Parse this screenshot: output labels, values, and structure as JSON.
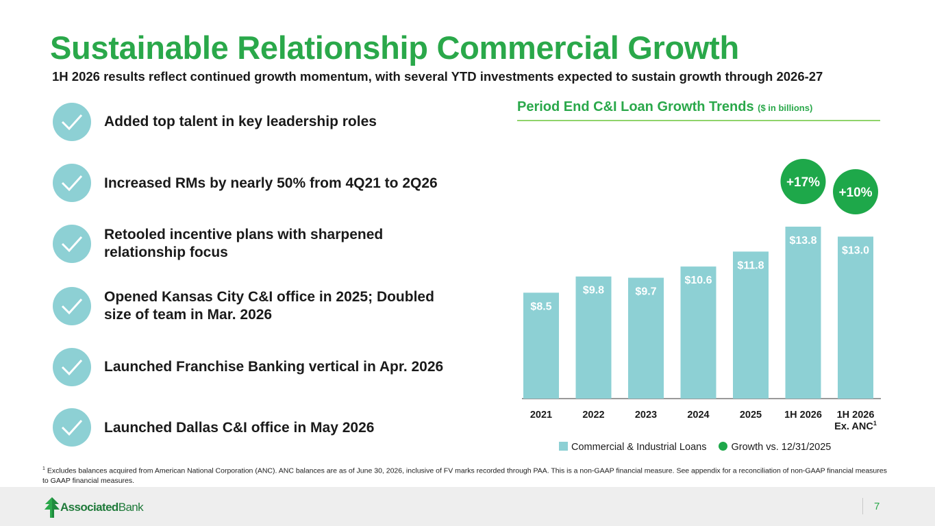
{
  "slide": {
    "title": "Sustainable Relationship Commercial Growth",
    "subtitle": "1H 2026 results reflect continued growth momentum, with several YTD investments expected to sustain growth through 2026-27",
    "page_number": "7"
  },
  "bullets": [
    {
      "line1": "Added top talent in key leadership roles",
      "line2": ""
    },
    {
      "line1": "Increased RMs by nearly 50% from 4Q21 to 2Q26",
      "line2": ""
    },
    {
      "line1": "Retooled incentive plans with sharpened",
      "line2": "relationship focus"
    },
    {
      "line1": "Opened Kansas City C&I office in 2025; Doubled",
      "line2": "size of team in Mar. 2026"
    },
    {
      "line1": "Launched Franchise Banking vertical in Apr. 2026",
      "line2": ""
    },
    {
      "line1": "Launched Dallas C&I office in May 2026",
      "line2": ""
    }
  ],
  "chart_title": {
    "main": "Period End C&I Loan Growth Trends",
    "unit": "($ in billions)"
  },
  "chart_data": {
    "type": "bar",
    "categories": [
      "2021",
      "2022",
      "2023",
      "2024",
      "2025",
      "1H 2026",
      "1H 2026 Ex. ANC"
    ],
    "category_lines": [
      [
        "2021"
      ],
      [
        "2022"
      ],
      [
        "2023"
      ],
      [
        "2024"
      ],
      [
        "2025"
      ],
      [
        "1H 2026"
      ],
      [
        "1H 2026",
        "Ex. ANC"
      ]
    ],
    "category_superscripts": [
      "",
      "",
      "",
      "",
      "",
      "",
      "1"
    ],
    "series": [
      {
        "name": "Commercial & Industrial Loans",
        "values": [
          8.5,
          9.8,
          9.7,
          10.6,
          11.8,
          13.8,
          13.0
        ],
        "color": "#8dd0d4"
      }
    ],
    "data_labels": [
      "$8.5",
      "$9.8",
      "$9.7",
      "$10.6",
      "$11.8",
      "$13.8",
      "$13.0"
    ],
    "growth_markers": [
      {
        "category": "1H 2026",
        "label": "+17%"
      },
      {
        "category": "1H 2026 Ex. ANC",
        "label": "+10%"
      }
    ],
    "growth_series_name": "Growth vs. 12/31/2025",
    "growth_color": "#1ea84a",
    "ylim": [
      0,
      15.5
    ],
    "legend_position": "bottom",
    "grid": false
  },
  "legend": {
    "bars": "Commercial & Industrial Loans",
    "growth": "Growth vs. 12/31/2025"
  },
  "footnote": {
    "mark": "1",
    "text": "Excludes balances acquired from American National Corporation (ANC). ANC balances are as of June 30, 2026, inclusive of FV marks recorded through PAA. This is a non-GAAP financial measure. See appendix for a reconciliation of non-GAAP financial measures to GAAP financial measures."
  },
  "brand": {
    "name_bold": "Associated",
    "name_light": "Bank",
    "accent": "#2aa84a",
    "logo_icon": "associated-bank-tree-icon"
  }
}
